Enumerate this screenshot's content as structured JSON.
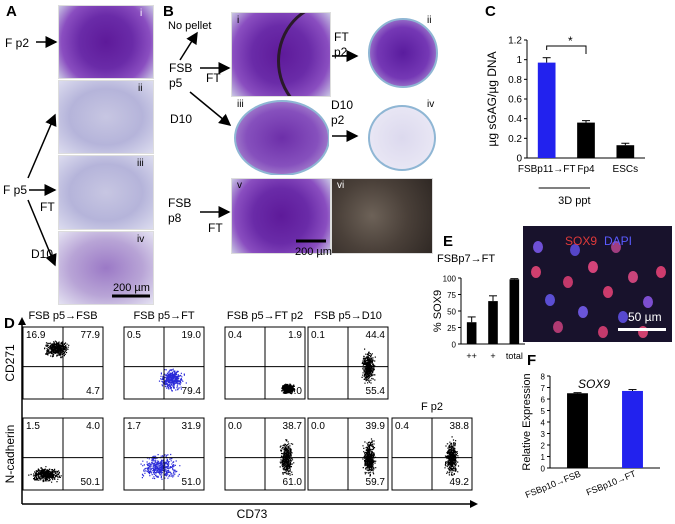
{
  "panels": {
    "A": {
      "label": "A",
      "roman": [
        "i",
        "ii",
        "iii",
        "iv"
      ],
      "row_labels": [
        "F p2",
        "F p5"
      ],
      "arrow_labels": [
        "FT",
        "D10"
      ],
      "scalebar": "200 µm"
    },
    "B": {
      "label": "B",
      "no_pellet": "No pellet",
      "fsb_p5_line1": "FSB",
      "fsb_p5_line2": "p5",
      "fsb_p8_line1": "FSB",
      "fsb_p8_line2": "p8",
      "ft": "FT",
      "d10": "D10",
      "ft_p2_line1": "FT",
      "ft_p2_line2": "p2",
      "d10_p2_line1": "D10",
      "d10_p2_line2": "p2",
      "ft_v": "FT",
      "roman": [
        "i",
        "ii",
        "iii",
        "iv",
        "v",
        "vi"
      ],
      "scalebar": "200 µm"
    },
    "C": {
      "label": "C",
      "axis_group_label": "3D ppt",
      "star": "*"
    },
    "D": {
      "label": "D",
      "col_titles": [
        "FSB p5→FSB",
        "FSB p5→FT",
        "FSB p5→FT p2",
        "FSB p5→D10"
      ],
      "extra_title": "F p2",
      "ylabel_top": "CD271",
      "ylabel_bottom": "N-cadherin",
      "xlabel": "CD73",
      "top_row": [
        {
          "ul": "16.9",
          "ur": "77.9",
          "lr": "4.7"
        },
        {
          "ul": "0.5",
          "ur": "19.0",
          "lr": "79.4"
        },
        {
          "ul": "0.4",
          "ur": "1.9",
          "lr": "97.0"
        },
        {
          "ul": "0.1",
          "ur": "44.4",
          "lr": "55.4"
        }
      ],
      "bottom_row": [
        {
          "ul": "1.5",
          "ur": "4.0",
          "lr": "50.1"
        },
        {
          "ul": "1.7",
          "ur": "31.9",
          "lr": "51.0"
        },
        {
          "ul": "0.0",
          "ur": "38.7",
          "lr": "61.0"
        },
        {
          "ul": "0.0",
          "ur": "39.9",
          "lr": "59.7"
        },
        {
          "ul": "0.4",
          "ur": "38.8",
          "lr": "49.2"
        }
      ]
    },
    "E": {
      "label": "E",
      "chart_title": "FSBp7→FT",
      "stain_sox9": "SOX9",
      "stain_dapi": "DAPI",
      "scalebar": "50 µm"
    },
    "F": {
      "label": "F"
    }
  },
  "chart_data": [
    {
      "type": "bar",
      "panel": "C",
      "categories": [
        "FSBp11→FT",
        "Fp4",
        "ESCs"
      ],
      "values": [
        0.97,
        0.36,
        0.13
      ],
      "errors": [
        0.05,
        0.02,
        0.02
      ],
      "colors": [
        "#2222ee",
        "#000000",
        "#000000"
      ],
      "ylabel": "µg sGAG/µg DNA",
      "ylim": [
        0,
        1.2
      ],
      "yticks": [
        0,
        0.2,
        0.4,
        0.6,
        0.8,
        1,
        1.2
      ],
      "ytick_labels": [
        "0",
        "0.2",
        "0.4",
        "0.6",
        "0.8",
        "1",
        "1.2"
      ]
    },
    {
      "type": "bar",
      "panel": "E",
      "categories": [
        "++",
        "+",
        "total"
      ],
      "values": [
        33,
        65,
        98
      ],
      "errors": [
        8,
        8,
        1
      ],
      "colors": [
        "#000000",
        "#000000",
        "#000000"
      ],
      "ylabel": "% SOX9",
      "ylim": [
        0,
        100
      ],
      "yticks": [
        0,
        25,
        50,
        75,
        100
      ],
      "ytick_labels": [
        "0",
        "25",
        "50",
        "75",
        "100"
      ]
    },
    {
      "type": "bar",
      "panel": "F",
      "title": "SOX9",
      "categories": [
        "FSBp10→FSB",
        "FSBp10→FT"
      ],
      "values": [
        6.5,
        6.7
      ],
      "errors": [
        0.05,
        0.12
      ],
      "colors": [
        "#000000",
        "#2222ee"
      ],
      "ylabel": "Relative Expression",
      "ylim": [
        0,
        8
      ],
      "yticks": [
        0,
        1,
        2,
        3,
        4,
        5,
        6,
        7,
        8
      ],
      "ytick_labels": [
        "0",
        "1",
        "2",
        "3",
        "4",
        "5",
        "6",
        "7",
        "8"
      ]
    }
  ]
}
